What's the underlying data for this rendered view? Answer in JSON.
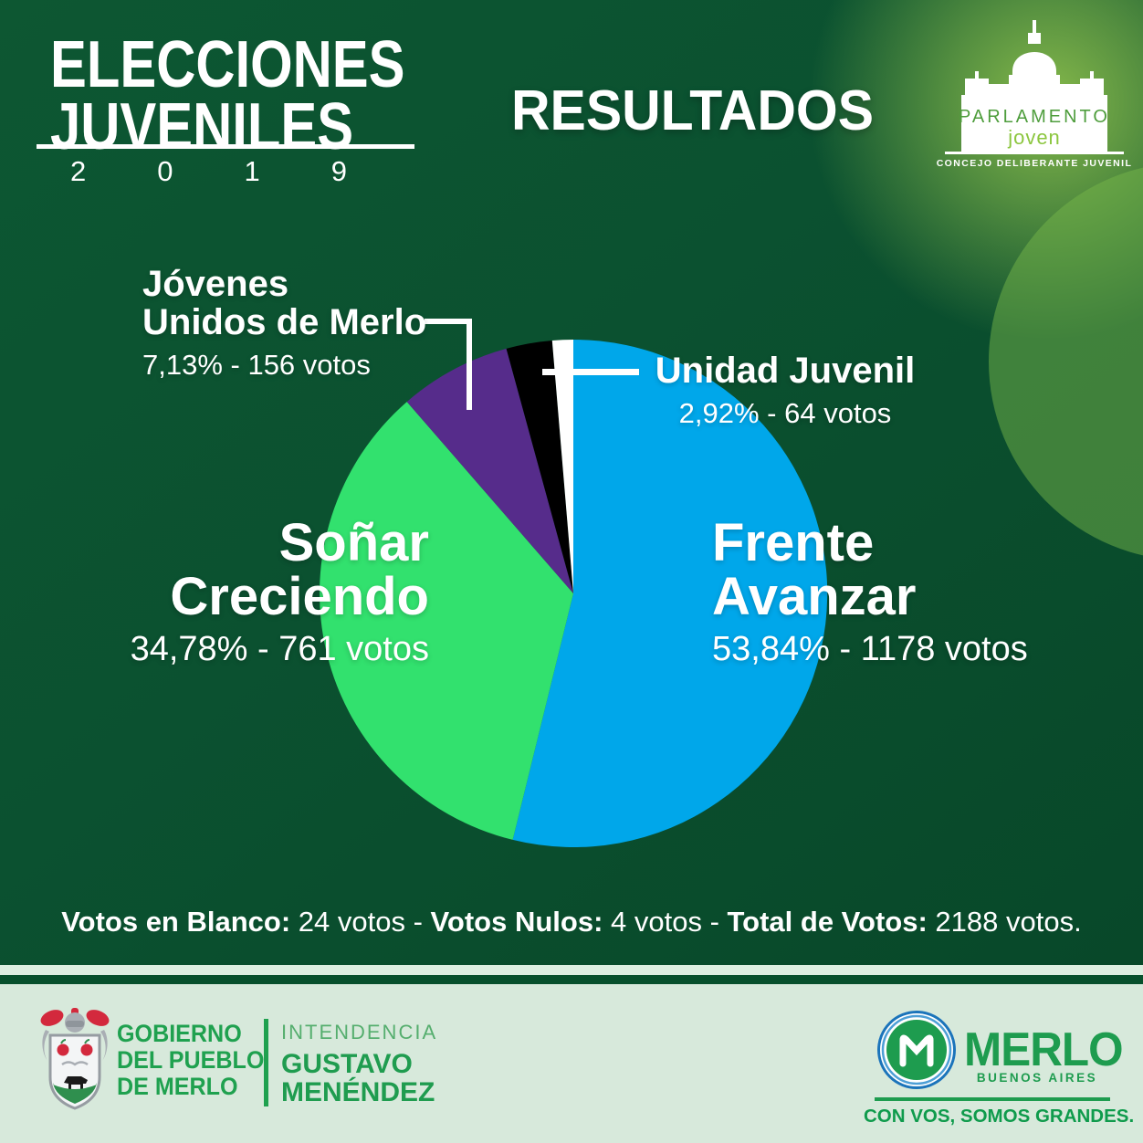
{
  "header": {
    "title_line1": "ELECCIONES",
    "title_line2": "JUVENILES",
    "title_year": "2019",
    "results_heading": "RESULTADOS"
  },
  "parlamento_logo": {
    "name_top": "PARLAMENTO",
    "name_bottom": "joven",
    "subtitle": "CONCEJO DELIBERANTE JUVENIL"
  },
  "chart_data": {
    "type": "pie",
    "title": "RESULTADOS",
    "unit": "votos",
    "total_votes": 2188,
    "direction": "clockwise",
    "start_angle_deg": 0,
    "legend_position": "around-slices",
    "slices": [
      {
        "label": "Frente Avanzar",
        "votes": 1178,
        "percent_label": "53,84%",
        "value": 53.84,
        "color": "#00A7EA"
      },
      {
        "label": "Soñar Creciendo",
        "votes": 761,
        "percent_label": "34,78%",
        "value": 34.78,
        "color": "#32E16E"
      },
      {
        "label": "Jóvenes Unidos de Merlo",
        "votes": 156,
        "percent_label": "7,13%",
        "value": 7.13,
        "color": "#562C8B"
      },
      {
        "label": "Unidad Juvenil",
        "votes": 64,
        "percent_label": "2,92%",
        "value": 2.92,
        "color": "#000000"
      },
      {
        "label": "",
        "votes": 28,
        "percent_label": "",
        "value": 1.33,
        "color": "#FFFFFF"
      }
    ]
  },
  "labels": {
    "jovenes": {
      "line1": "Jóvenes",
      "line2": "Unidos de Merlo",
      "caption": "7,13% - 156 votos"
    },
    "unidad": {
      "line1": "Unidad Juvenil",
      "caption": "2,92% - 64 votos"
    },
    "sonar": {
      "line1": "Soñar",
      "line2": "Creciendo",
      "caption": "34,78% - 761 votos"
    },
    "frente": {
      "line1": "Frente",
      "line2": "Avanzar",
      "caption": "53,84% - 1178 votos"
    }
  },
  "summary": {
    "blanco_label": "Votos en Blanco:",
    "blanco_value": " 24 votos - ",
    "nulos_label": "Votos Nulos:",
    "nulos_value": " 4 votos - ",
    "total_label": "Total de Votos:",
    "total_value": " 2188 votos."
  },
  "footer": {
    "gobierno": {
      "line1": "GOBIERNO",
      "line2": "DEL PUEBLO",
      "line3": "DE MERLO"
    },
    "intendencia": {
      "label": "INTENDENCIA",
      "name_line1": "GUSTAVO",
      "name_line2": "MENÉNDEZ"
    },
    "merlo": {
      "name": "MERLO",
      "subtitle": "BUENOS AIRES",
      "slogan": "CON VOS, SOMOS GRANDES."
    }
  },
  "colors": {
    "background_dark_green": "#0B5130",
    "background_glow_green": "#8DBF4C",
    "footer_background": "#D7E9DB",
    "accent_green": "#1FA14F",
    "text_white": "#FFFFFF"
  }
}
